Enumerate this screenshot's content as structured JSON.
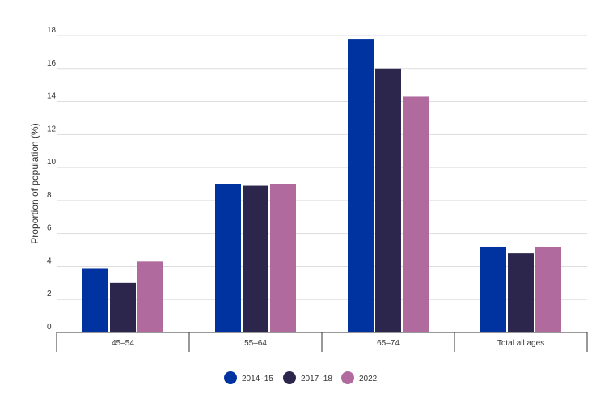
{
  "chart_data": {
    "type": "bar",
    "title": "",
    "xlabel": "",
    "ylabel": "Proportion of population (%)",
    "ylim": [
      0,
      18
    ],
    "yticks": [
      0,
      2,
      4,
      6,
      8,
      10,
      12,
      14,
      16,
      18
    ],
    "grid": true,
    "legend_position": "bottom-center",
    "categories": [
      "45–54",
      "55–64",
      "65–74",
      "Total all ages"
    ],
    "series": [
      {
        "name": "2014–15",
        "color": "#0032a0",
        "values": [
          3.9,
          9.0,
          17.8,
          5.2
        ]
      },
      {
        "name": "2017–18",
        "color": "#2c264d",
        "values": [
          3.0,
          8.9,
          16.0,
          4.8
        ]
      },
      {
        "name": "2022",
        "color": "#b06a9e",
        "values": [
          4.3,
          9.0,
          14.3,
          5.2
        ]
      }
    ]
  }
}
